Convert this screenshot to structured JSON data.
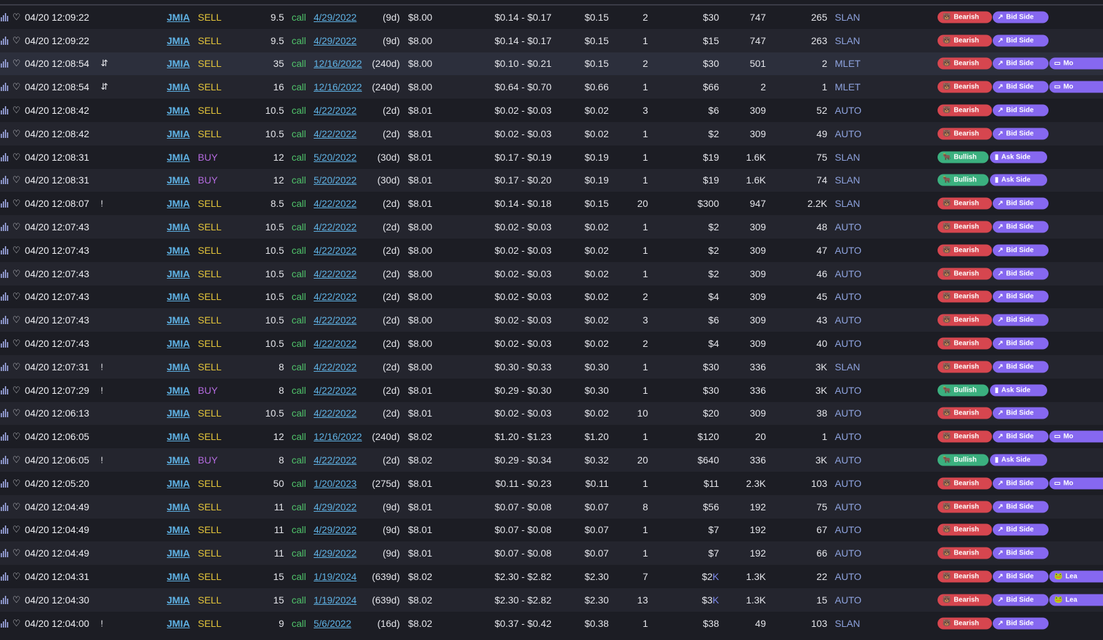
{
  "tags": {
    "bearish": "Bearish",
    "bullish": "Bullish",
    "bid_side": "Bid Side",
    "ask_side": "Ask Side",
    "more": "Mo",
    "leap": "Lea"
  },
  "icons": {
    "chart": "bar-chart-icon",
    "heart": "heart-icon",
    "sweep": "arrows-swap-icon",
    "alert": "exclamation-icon"
  },
  "colors": {
    "bearish": "#d6464f",
    "bullish": "#3bb07f",
    "side_tag": "#8668f0",
    "sell": "#e6c73a",
    "buy": "#b56be0",
    "ticker": "#5fb3e6",
    "call": "#4fc36a"
  },
  "rows": [
    {
      "time": "04/20 12:09:22",
      "flag": "",
      "ticker": "JMIA",
      "side": "SELL",
      "strike": "9.5",
      "type": "call",
      "exp": "4/29/2022",
      "dte": "(9d)",
      "spot": "$8.00",
      "bidask": "$0.14 - $0.17",
      "price": "$0.15",
      "size": "2",
      "prem": "$30",
      "prem_k": "",
      "vol": "747",
      "oi": "265",
      "exch": "SLAN",
      "sentiment": "bearish",
      "side_tag": "bid",
      "extra": ""
    },
    {
      "time": "04/20 12:09:22",
      "flag": "",
      "ticker": "JMIA",
      "side": "SELL",
      "strike": "9.5",
      "type": "call",
      "exp": "4/29/2022",
      "dte": "(9d)",
      "spot": "$8.00",
      "bidask": "$0.14 - $0.17",
      "price": "$0.15",
      "size": "1",
      "prem": "$15",
      "prem_k": "",
      "vol": "747",
      "oi": "263",
      "exch": "SLAN",
      "sentiment": "bearish",
      "side_tag": "bid",
      "extra": ""
    },
    {
      "time": "04/20 12:08:54",
      "flag": "⇵",
      "ticker": "JMIA",
      "side": "SELL",
      "strike": "35",
      "type": "call",
      "exp": "12/16/2022",
      "dte": "(240d)",
      "spot": "$8.00",
      "bidask": "$0.10 - $0.21",
      "price": "$0.15",
      "size": "2",
      "prem": "$30",
      "prem_k": "",
      "vol": "501",
      "oi": "2",
      "exch": "MLET",
      "sentiment": "bearish",
      "side_tag": "bid",
      "extra": "more"
    },
    {
      "time": "04/20 12:08:54",
      "flag": "⇵",
      "ticker": "JMIA",
      "side": "SELL",
      "strike": "16",
      "type": "call",
      "exp": "12/16/2022",
      "dte": "(240d)",
      "spot": "$8.00",
      "bidask": "$0.64 - $0.70",
      "price": "$0.66",
      "size": "1",
      "prem": "$66",
      "prem_k": "",
      "vol": "2",
      "oi": "1",
      "exch": "MLET",
      "sentiment": "bearish",
      "side_tag": "bid",
      "extra": "more"
    },
    {
      "time": "04/20 12:08:42",
      "flag": "",
      "ticker": "JMIA",
      "side": "SELL",
      "strike": "10.5",
      "type": "call",
      "exp": "4/22/2022",
      "dte": "(2d)",
      "spot": "$8.01",
      "bidask": "$0.02 - $0.03",
      "price": "$0.02",
      "size": "3",
      "prem": "$6",
      "prem_k": "",
      "vol": "309",
      "oi": "52",
      "exch": "AUTO",
      "sentiment": "bearish",
      "side_tag": "bid",
      "extra": ""
    },
    {
      "time": "04/20 12:08:42",
      "flag": "",
      "ticker": "JMIA",
      "side": "SELL",
      "strike": "10.5",
      "type": "call",
      "exp": "4/22/2022",
      "dte": "(2d)",
      "spot": "$8.01",
      "bidask": "$0.02 - $0.03",
      "price": "$0.02",
      "size": "1",
      "prem": "$2",
      "prem_k": "",
      "vol": "309",
      "oi": "49",
      "exch": "AUTO",
      "sentiment": "bearish",
      "side_tag": "bid",
      "extra": ""
    },
    {
      "time": "04/20 12:08:31",
      "flag": "",
      "ticker": "JMIA",
      "side": "BUY",
      "strike": "12",
      "type": "call",
      "exp": "5/20/2022",
      "dte": "(30d)",
      "spot": "$8.01",
      "bidask": "$0.17 - $0.19",
      "price": "$0.19",
      "size": "1",
      "prem": "$19",
      "prem_k": "",
      "vol": "1.6K",
      "oi": "75",
      "exch": "SLAN",
      "sentiment": "bullish",
      "side_tag": "ask",
      "extra": ""
    },
    {
      "time": "04/20 12:08:31",
      "flag": "",
      "ticker": "JMIA",
      "side": "BUY",
      "strike": "12",
      "type": "call",
      "exp": "5/20/2022",
      "dte": "(30d)",
      "spot": "$8.01",
      "bidask": "$0.17 - $0.20",
      "price": "$0.19",
      "size": "1",
      "prem": "$19",
      "prem_k": "",
      "vol": "1.6K",
      "oi": "74",
      "exch": "SLAN",
      "sentiment": "bullish",
      "side_tag": "ask",
      "extra": ""
    },
    {
      "time": "04/20 12:08:07",
      "flag": "!",
      "ticker": "JMIA",
      "side": "SELL",
      "strike": "8.5",
      "type": "call",
      "exp": "4/22/2022",
      "dte": "(2d)",
      "spot": "$8.01",
      "bidask": "$0.14 - $0.18",
      "price": "$0.15",
      "size": "20",
      "prem": "$300",
      "prem_k": "",
      "vol": "947",
      "oi": "2.2K",
      "exch": "SLAN",
      "sentiment": "bearish",
      "side_tag": "bid",
      "extra": ""
    },
    {
      "time": "04/20 12:07:43",
      "flag": "",
      "ticker": "JMIA",
      "side": "SELL",
      "strike": "10.5",
      "type": "call",
      "exp": "4/22/2022",
      "dte": "(2d)",
      "spot": "$8.00",
      "bidask": "$0.02 - $0.03",
      "price": "$0.02",
      "size": "1",
      "prem": "$2",
      "prem_k": "",
      "vol": "309",
      "oi": "48",
      "exch": "AUTO",
      "sentiment": "bearish",
      "side_tag": "bid",
      "extra": ""
    },
    {
      "time": "04/20 12:07:43",
      "flag": "",
      "ticker": "JMIA",
      "side": "SELL",
      "strike": "10.5",
      "type": "call",
      "exp": "4/22/2022",
      "dte": "(2d)",
      "spot": "$8.00",
      "bidask": "$0.02 - $0.03",
      "price": "$0.02",
      "size": "1",
      "prem": "$2",
      "prem_k": "",
      "vol": "309",
      "oi": "47",
      "exch": "AUTO",
      "sentiment": "bearish",
      "side_tag": "bid",
      "extra": ""
    },
    {
      "time": "04/20 12:07:43",
      "flag": "",
      "ticker": "JMIA",
      "side": "SELL",
      "strike": "10.5",
      "type": "call",
      "exp": "4/22/2022",
      "dte": "(2d)",
      "spot": "$8.00",
      "bidask": "$0.02 - $0.03",
      "price": "$0.02",
      "size": "1",
      "prem": "$2",
      "prem_k": "",
      "vol": "309",
      "oi": "46",
      "exch": "AUTO",
      "sentiment": "bearish",
      "side_tag": "bid",
      "extra": ""
    },
    {
      "time": "04/20 12:07:43",
      "flag": "",
      "ticker": "JMIA",
      "side": "SELL",
      "strike": "10.5",
      "type": "call",
      "exp": "4/22/2022",
      "dte": "(2d)",
      "spot": "$8.00",
      "bidask": "$0.02 - $0.03",
      "price": "$0.02",
      "size": "2",
      "prem": "$4",
      "prem_k": "",
      "vol": "309",
      "oi": "45",
      "exch": "AUTO",
      "sentiment": "bearish",
      "side_tag": "bid",
      "extra": ""
    },
    {
      "time": "04/20 12:07:43",
      "flag": "",
      "ticker": "JMIA",
      "side": "SELL",
      "strike": "10.5",
      "type": "call",
      "exp": "4/22/2022",
      "dte": "(2d)",
      "spot": "$8.00",
      "bidask": "$0.02 - $0.03",
      "price": "$0.02",
      "size": "3",
      "prem": "$6",
      "prem_k": "",
      "vol": "309",
      "oi": "43",
      "exch": "AUTO",
      "sentiment": "bearish",
      "side_tag": "bid",
      "extra": ""
    },
    {
      "time": "04/20 12:07:43",
      "flag": "",
      "ticker": "JMIA",
      "side": "SELL",
      "strike": "10.5",
      "type": "call",
      "exp": "4/22/2022",
      "dte": "(2d)",
      "spot": "$8.00",
      "bidask": "$0.02 - $0.03",
      "price": "$0.02",
      "size": "2",
      "prem": "$4",
      "prem_k": "",
      "vol": "309",
      "oi": "40",
      "exch": "AUTO",
      "sentiment": "bearish",
      "side_tag": "bid",
      "extra": ""
    },
    {
      "time": "04/20 12:07:31",
      "flag": "!",
      "ticker": "JMIA",
      "side": "SELL",
      "strike": "8",
      "type": "call",
      "exp": "4/22/2022",
      "dte": "(2d)",
      "spot": "$8.00",
      "bidask": "$0.30 - $0.33",
      "price": "$0.30",
      "size": "1",
      "prem": "$30",
      "prem_k": "",
      "vol": "336",
      "oi": "3K",
      "exch": "SLAN",
      "sentiment": "bearish",
      "side_tag": "bid",
      "extra": ""
    },
    {
      "time": "04/20 12:07:29",
      "flag": "!",
      "ticker": "JMIA",
      "side": "BUY",
      "strike": "8",
      "type": "call",
      "exp": "4/22/2022",
      "dte": "(2d)",
      "spot": "$8.01",
      "bidask": "$0.29 - $0.30",
      "price": "$0.30",
      "size": "1",
      "prem": "$30",
      "prem_k": "",
      "vol": "336",
      "oi": "3K",
      "exch": "AUTO",
      "sentiment": "bullish",
      "side_tag": "ask",
      "extra": ""
    },
    {
      "time": "04/20 12:06:13",
      "flag": "",
      "ticker": "JMIA",
      "side": "SELL",
      "strike": "10.5",
      "type": "call",
      "exp": "4/22/2022",
      "dte": "(2d)",
      "spot": "$8.01",
      "bidask": "$0.02 - $0.03",
      "price": "$0.02",
      "size": "10",
      "prem": "$20",
      "prem_k": "",
      "vol": "309",
      "oi": "38",
      "exch": "AUTO",
      "sentiment": "bearish",
      "side_tag": "bid",
      "extra": ""
    },
    {
      "time": "04/20 12:06:05",
      "flag": "",
      "ticker": "JMIA",
      "side": "SELL",
      "strike": "12",
      "type": "call",
      "exp": "12/16/2022",
      "dte": "(240d)",
      "spot": "$8.02",
      "bidask": "$1.20 - $1.23",
      "price": "$1.20",
      "size": "1",
      "prem": "$120",
      "prem_k": "",
      "vol": "20",
      "oi": "1",
      "exch": "AUTO",
      "sentiment": "bearish",
      "side_tag": "bid",
      "extra": "more"
    },
    {
      "time": "04/20 12:06:05",
      "flag": "!",
      "ticker": "JMIA",
      "side": "BUY",
      "strike": "8",
      "type": "call",
      "exp": "4/22/2022",
      "dte": "(2d)",
      "spot": "$8.02",
      "bidask": "$0.29 - $0.34",
      "price": "$0.32",
      "size": "20",
      "prem": "$640",
      "prem_k": "",
      "vol": "336",
      "oi": "3K",
      "exch": "AUTO",
      "sentiment": "bullish",
      "side_tag": "ask",
      "extra": ""
    },
    {
      "time": "04/20 12:05:20",
      "flag": "",
      "ticker": "JMIA",
      "side": "SELL",
      "strike": "50",
      "type": "call",
      "exp": "1/20/2023",
      "dte": "(275d)",
      "spot": "$8.01",
      "bidask": "$0.11 - $0.23",
      "price": "$0.11",
      "size": "1",
      "prem": "$11",
      "prem_k": "",
      "vol": "2.3K",
      "oi": "103",
      "exch": "AUTO",
      "sentiment": "bearish",
      "side_tag": "bid",
      "extra": "more"
    },
    {
      "time": "04/20 12:04:49",
      "flag": "",
      "ticker": "JMIA",
      "side": "SELL",
      "strike": "11",
      "type": "call",
      "exp": "4/29/2022",
      "dte": "(9d)",
      "spot": "$8.01",
      "bidask": "$0.07 - $0.08",
      "price": "$0.07",
      "size": "8",
      "prem": "$56",
      "prem_k": "",
      "vol": "192",
      "oi": "75",
      "exch": "AUTO",
      "sentiment": "bearish",
      "side_tag": "bid",
      "extra": ""
    },
    {
      "time": "04/20 12:04:49",
      "flag": "",
      "ticker": "JMIA",
      "side": "SELL",
      "strike": "11",
      "type": "call",
      "exp": "4/29/2022",
      "dte": "(9d)",
      "spot": "$8.01",
      "bidask": "$0.07 - $0.08",
      "price": "$0.07",
      "size": "1",
      "prem": "$7",
      "prem_k": "",
      "vol": "192",
      "oi": "67",
      "exch": "AUTO",
      "sentiment": "bearish",
      "side_tag": "bid",
      "extra": ""
    },
    {
      "time": "04/20 12:04:49",
      "flag": "",
      "ticker": "JMIA",
      "side": "SELL",
      "strike": "11",
      "type": "call",
      "exp": "4/29/2022",
      "dte": "(9d)",
      "spot": "$8.01",
      "bidask": "$0.07 - $0.08",
      "price": "$0.07",
      "size": "1",
      "prem": "$7",
      "prem_k": "",
      "vol": "192",
      "oi": "66",
      "exch": "AUTO",
      "sentiment": "bearish",
      "side_tag": "bid",
      "extra": ""
    },
    {
      "time": "04/20 12:04:31",
      "flag": "",
      "ticker": "JMIA",
      "side": "SELL",
      "strike": "15",
      "type": "call",
      "exp": "1/19/2024",
      "dte": "(639d)",
      "spot": "$8.02",
      "bidask": "$2.30 - $2.82",
      "price": "$2.30",
      "size": "7",
      "prem": "$2",
      "prem_k": "K",
      "vol": "1.3K",
      "oi": "22",
      "exch": "AUTO",
      "sentiment": "bearish",
      "side_tag": "bid",
      "extra": "leap"
    },
    {
      "time": "04/20 12:04:30",
      "flag": "",
      "ticker": "JMIA",
      "side": "SELL",
      "strike": "15",
      "type": "call",
      "exp": "1/19/2024",
      "dte": "(639d)",
      "spot": "$8.02",
      "bidask": "$2.30 - $2.82",
      "price": "$2.30",
      "size": "13",
      "prem": "$3",
      "prem_k": "K",
      "vol": "1.3K",
      "oi": "15",
      "exch": "AUTO",
      "sentiment": "bearish",
      "side_tag": "bid",
      "extra": "leap"
    },
    {
      "time": "04/20 12:04:00",
      "flag": "!",
      "ticker": "JMIA",
      "side": "SELL",
      "strike": "9",
      "type": "call",
      "exp": "5/6/2022",
      "dte": "(16d)",
      "spot": "$8.02",
      "bidask": "$0.37 - $0.42",
      "price": "$0.38",
      "size": "1",
      "prem": "$38",
      "prem_k": "",
      "vol": "49",
      "oi": "103",
      "exch": "SLAN",
      "sentiment": "bearish",
      "side_tag": "bid",
      "extra": ""
    }
  ]
}
